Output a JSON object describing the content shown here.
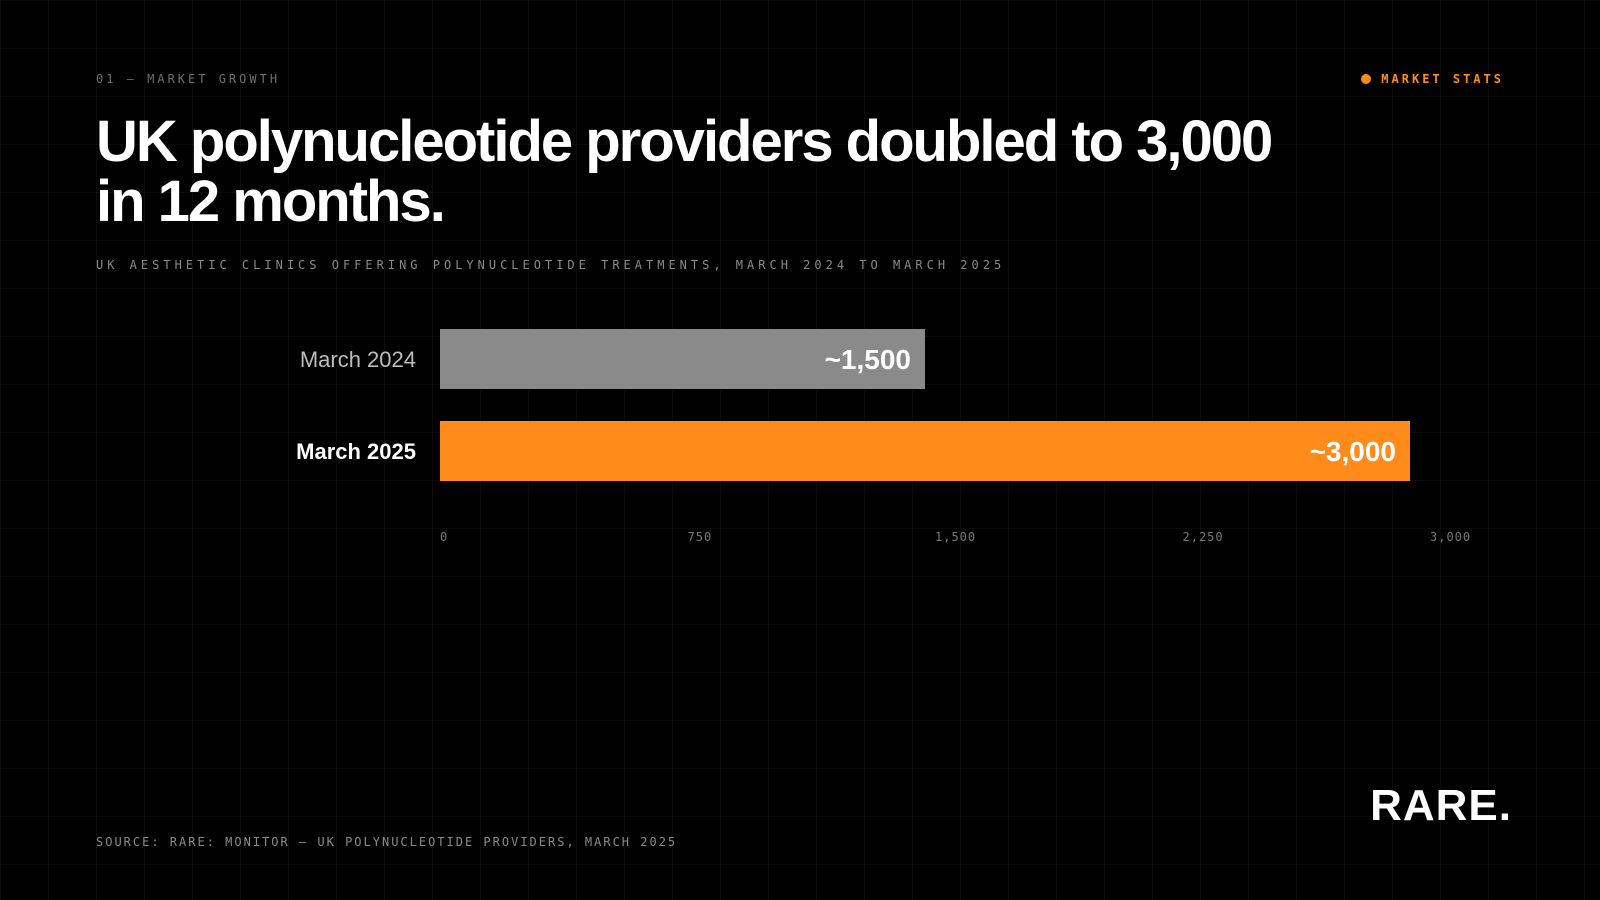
{
  "header": {
    "eyebrow": "01 — MARKET GROWTH",
    "tag": "MARKET STATS",
    "tag_color": "#ff8c1a"
  },
  "title": "UK polynucleotide providers doubled to 3,000 in 12 months.",
  "subtitle": "UK AESTHETIC CLINICS OFFERING POLYNUCLEOTIDE TREATMENTS, MARCH 2024 TO MARCH 2025",
  "source": "SOURCE: RARE: MONITOR — UK POLYNUCLEOTIDE PROVIDERS, MARCH 2025",
  "logo": "RARE.",
  "chart_data": {
    "type": "bar",
    "orientation": "horizontal",
    "categories": [
      "March 2024",
      "March 2025"
    ],
    "values": [
      1500,
      3000
    ],
    "data_labels": [
      "~1,500",
      "~3,000"
    ],
    "bar_colors": [
      "#8a8a8a",
      "#ff8c1a"
    ],
    "category_colors": [
      "#bdbdbd",
      "#ffffff"
    ],
    "x_ticks": [
      0,
      750,
      1500,
      2250,
      3000
    ],
    "x_tick_labels": [
      "0",
      "750",
      "1,500",
      "2,250",
      "3,000"
    ],
    "xlim": [
      0,
      3000
    ],
    "grid": true,
    "legend": "none"
  }
}
